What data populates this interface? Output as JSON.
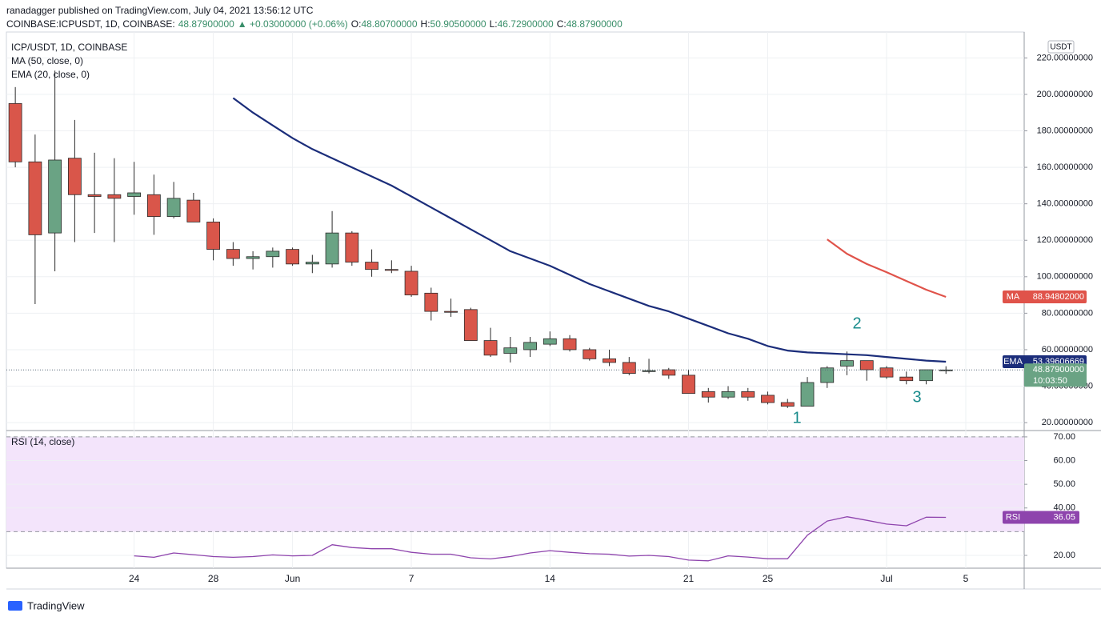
{
  "header": {
    "publisher": "ranadagger published on TradingView.com, July 04, 2021 13:56:12 UTC",
    "symbol": "COINBASE:ICPUSDT, 1D, COINBASE:",
    "last": "48.87900000",
    "change": "▲ +0.03000000 (+0.06%)",
    "ohlc": [
      {
        "label": "O:",
        "value": "48.80700000"
      },
      {
        "label": "H:",
        "value": "50.90500000"
      },
      {
        "label": "L:",
        "value": "46.72900000"
      },
      {
        "label": "C:",
        "value": "48.87900000"
      }
    ]
  },
  "footer": "TradingView",
  "chart_data": [
    {
      "type": "candlestick",
      "title": "ICP/USDT, 1D, COINBASE",
      "currency": "USDT",
      "up_color": "#6aa384",
      "down_color": "#d9564a",
      "open": [
        195,
        163,
        124,
        165,
        145,
        145,
        144,
        145,
        133,
        142,
        130,
        115,
        110,
        111,
        115,
        107,
        107,
        124,
        108,
        104,
        103,
        91,
        81,
        82,
        65,
        58,
        60,
        63,
        66,
        60,
        55,
        53,
        48,
        49,
        46,
        37,
        34,
        37,
        35,
        31,
        29,
        42,
        51,
        54,
        50,
        45,
        43,
        48.807
      ],
      "high": [
        204,
        178,
        213,
        186,
        168,
        165,
        163,
        156,
        152,
        146,
        132,
        119,
        114,
        116,
        116,
        112,
        136,
        125,
        115,
        109,
        106,
        94,
        88,
        83,
        72,
        67,
        67,
        70,
        68,
        61,
        60,
        56,
        55,
        50,
        49,
        39,
        40,
        39,
        37,
        33,
        45,
        51,
        59,
        54,
        51,
        48,
        49,
        50.905
      ],
      "low": [
        160,
        85,
        103,
        119,
        124,
        119,
        134,
        123,
        132,
        130,
        109,
        106,
        104,
        105,
        106,
        102,
        105,
        106,
        100,
        102,
        89,
        76,
        78,
        65,
        56,
        53,
        56,
        62,
        59,
        54,
        51,
        46,
        47,
        44,
        36,
        31,
        33,
        32,
        30,
        28,
        29,
        39,
        46,
        43,
        44,
        41,
        41,
        46.729
      ],
      "close": [
        163,
        123,
        164,
        145,
        144,
        143,
        146,
        133,
        143,
        130,
        115,
        110,
        111,
        114,
        107,
        108,
        124,
        108,
        104,
        103.5,
        90,
        81,
        80.5,
        65,
        57,
        61,
        64,
        66,
        60,
        55,
        53,
        47,
        48.5,
        46,
        36,
        34,
        37,
        34,
        31,
        29,
        42,
        50,
        54,
        49,
        45,
        43,
        49,
        48.879
      ],
      "close_label": "48.87900000",
      "countdown": "10:03:50",
      "series": [
        {
          "name": "MA (50, close, 0)",
          "tag": "MA",
          "color": "#e0534a",
          "last_label": "88.94802000",
          "values": [
            null,
            null,
            null,
            null,
            null,
            null,
            null,
            null,
            null,
            null,
            null,
            null,
            null,
            null,
            null,
            null,
            null,
            null,
            null,
            null,
            null,
            null,
            null,
            null,
            null,
            null,
            null,
            null,
            null,
            null,
            null,
            null,
            null,
            null,
            null,
            null,
            null,
            null,
            null,
            null,
            null,
            120.5,
            112.6,
            107,
            102.5,
            97.7,
            92.9,
            88.94802
          ]
        },
        {
          "name": "EMA (20, close, 0)",
          "tag": "EMA",
          "color": "#1b2d7a",
          "last_label": "53.39606669",
          "values": [
            null,
            null,
            null,
            null,
            null,
            null,
            null,
            null,
            null,
            null,
            null,
            198,
            190,
            183,
            176,
            170,
            165,
            160,
            155,
            150,
            144,
            138,
            132,
            126,
            120,
            114,
            110,
            106,
            101,
            96,
            92,
            88,
            84,
            81,
            77,
            73,
            69,
            66,
            62,
            59.5,
            58.5,
            58,
            57.5,
            57,
            56,
            55,
            54,
            53.39606669
          ]
        }
      ],
      "xlim": [
        -0.45,
        50.95
      ],
      "xticks": [
        {
          "value": 6,
          "label": "24"
        },
        {
          "value": 10,
          "label": "28"
        },
        {
          "value": 14,
          "label": "Jun"
        },
        {
          "value": 20,
          "label": "7"
        },
        {
          "value": 27,
          "label": "14"
        },
        {
          "value": 34,
          "label": "21"
        },
        {
          "value": 38,
          "label": "25"
        },
        {
          "value": 44,
          "label": "Jul"
        },
        {
          "value": 48,
          "label": "5"
        }
      ],
      "ylim": [
        16.1,
        234.2
      ],
      "yticks": [
        {
          "value": 20,
          "label": "20.00000000"
        },
        {
          "value": 40,
          "label": "40.00000000"
        },
        {
          "value": 60,
          "label": "60.00000000"
        },
        {
          "value": 80,
          "label": "80.00000000"
        },
        {
          "value": 100,
          "label": "100.00000000"
        },
        {
          "value": 120,
          "label": "120.00000000"
        },
        {
          "value": 140,
          "label": "140.00000000"
        },
        {
          "value": 160,
          "label": "160.00000000"
        },
        {
          "value": 180,
          "label": "180.00000000"
        },
        {
          "value": 200,
          "label": "200.00000000"
        },
        {
          "value": 220,
          "label": "220.00000000"
        }
      ],
      "grid": true,
      "annotations": [
        "1",
        "2",
        "3"
      ]
    },
    {
      "type": "line",
      "series": [
        {
          "name": "RSI (14, close)",
          "tag": "RSI",
          "color": "#8e44ad",
          "values": [
            null,
            null,
            null,
            null,
            null,
            null,
            19.8,
            19.2,
            21,
            20.3,
            19.5,
            19.2,
            19.5,
            20.2,
            19.8,
            20,
            24.5,
            23.3,
            22.8,
            22.8,
            21.3,
            20.5,
            20.5,
            19,
            18.5,
            19.5,
            21,
            22,
            21.3,
            20.7,
            20.5,
            19.7,
            20,
            19.5,
            18,
            17.7,
            19.8,
            19.3,
            18.6,
            18.6,
            28.5,
            34.5,
            36.3,
            34.8,
            33.2,
            32.5,
            36.1,
            36.05
          ]
        }
      ],
      "band": [
        30,
        70
      ],
      "band_color": "#f3e4fb",
      "ylim": [
        14.6,
        72
      ],
      "yticks": [
        {
          "value": 20,
          "label": "20.00"
        },
        {
          "value": 40,
          "label": "40.00"
        },
        {
          "value": 50,
          "label": "50.00"
        },
        {
          "value": 60,
          "label": "60.00"
        },
        {
          "value": 70,
          "label": "70.00"
        }
      ],
      "grid": true
    }
  ]
}
